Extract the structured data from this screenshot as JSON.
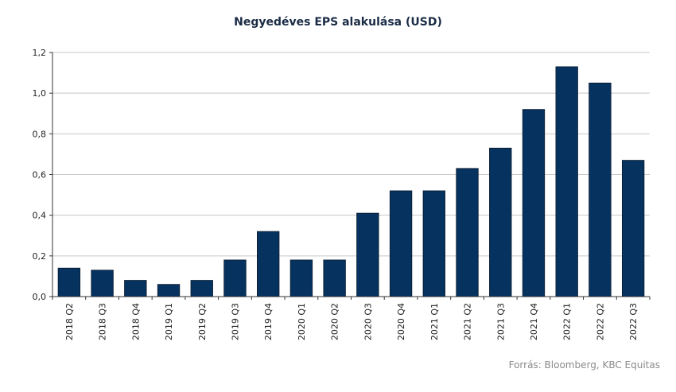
{
  "chart_data": {
    "type": "bar",
    "title": "Negyedéves EPS alakulása (USD)",
    "xlabel": "",
    "ylabel": "",
    "categories": [
      "2018 Q2",
      "2018 Q3",
      "2018 Q4",
      "2019 Q1",
      "2019 Q2",
      "2019 Q3",
      "2019 Q4",
      "2020 Q1",
      "2020 Q2",
      "2020 Q3",
      "2020 Q4",
      "2021 Q1",
      "2021 Q2",
      "2021 Q3",
      "2021 Q4",
      "2022 Q1",
      "2022 Q2",
      "2022 Q3"
    ],
    "values": [
      0.14,
      0.13,
      0.08,
      0.06,
      0.08,
      0.18,
      0.32,
      0.18,
      0.18,
      0.41,
      0.52,
      0.52,
      0.63,
      0.73,
      0.92,
      1.13,
      1.05,
      0.67
    ],
    "ylim": [
      0,
      1.2
    ],
    "yticks": [
      "0,0",
      "0,2",
      "0,4",
      "0,6",
      "0,8",
      "1,0",
      "1,2"
    ],
    "grid": true,
    "bar_color": "#06325f",
    "grid_color": "#c8c8c8",
    "axis_color": "#333333"
  },
  "source": "Forrás: Bloomberg, KBC Equitas"
}
